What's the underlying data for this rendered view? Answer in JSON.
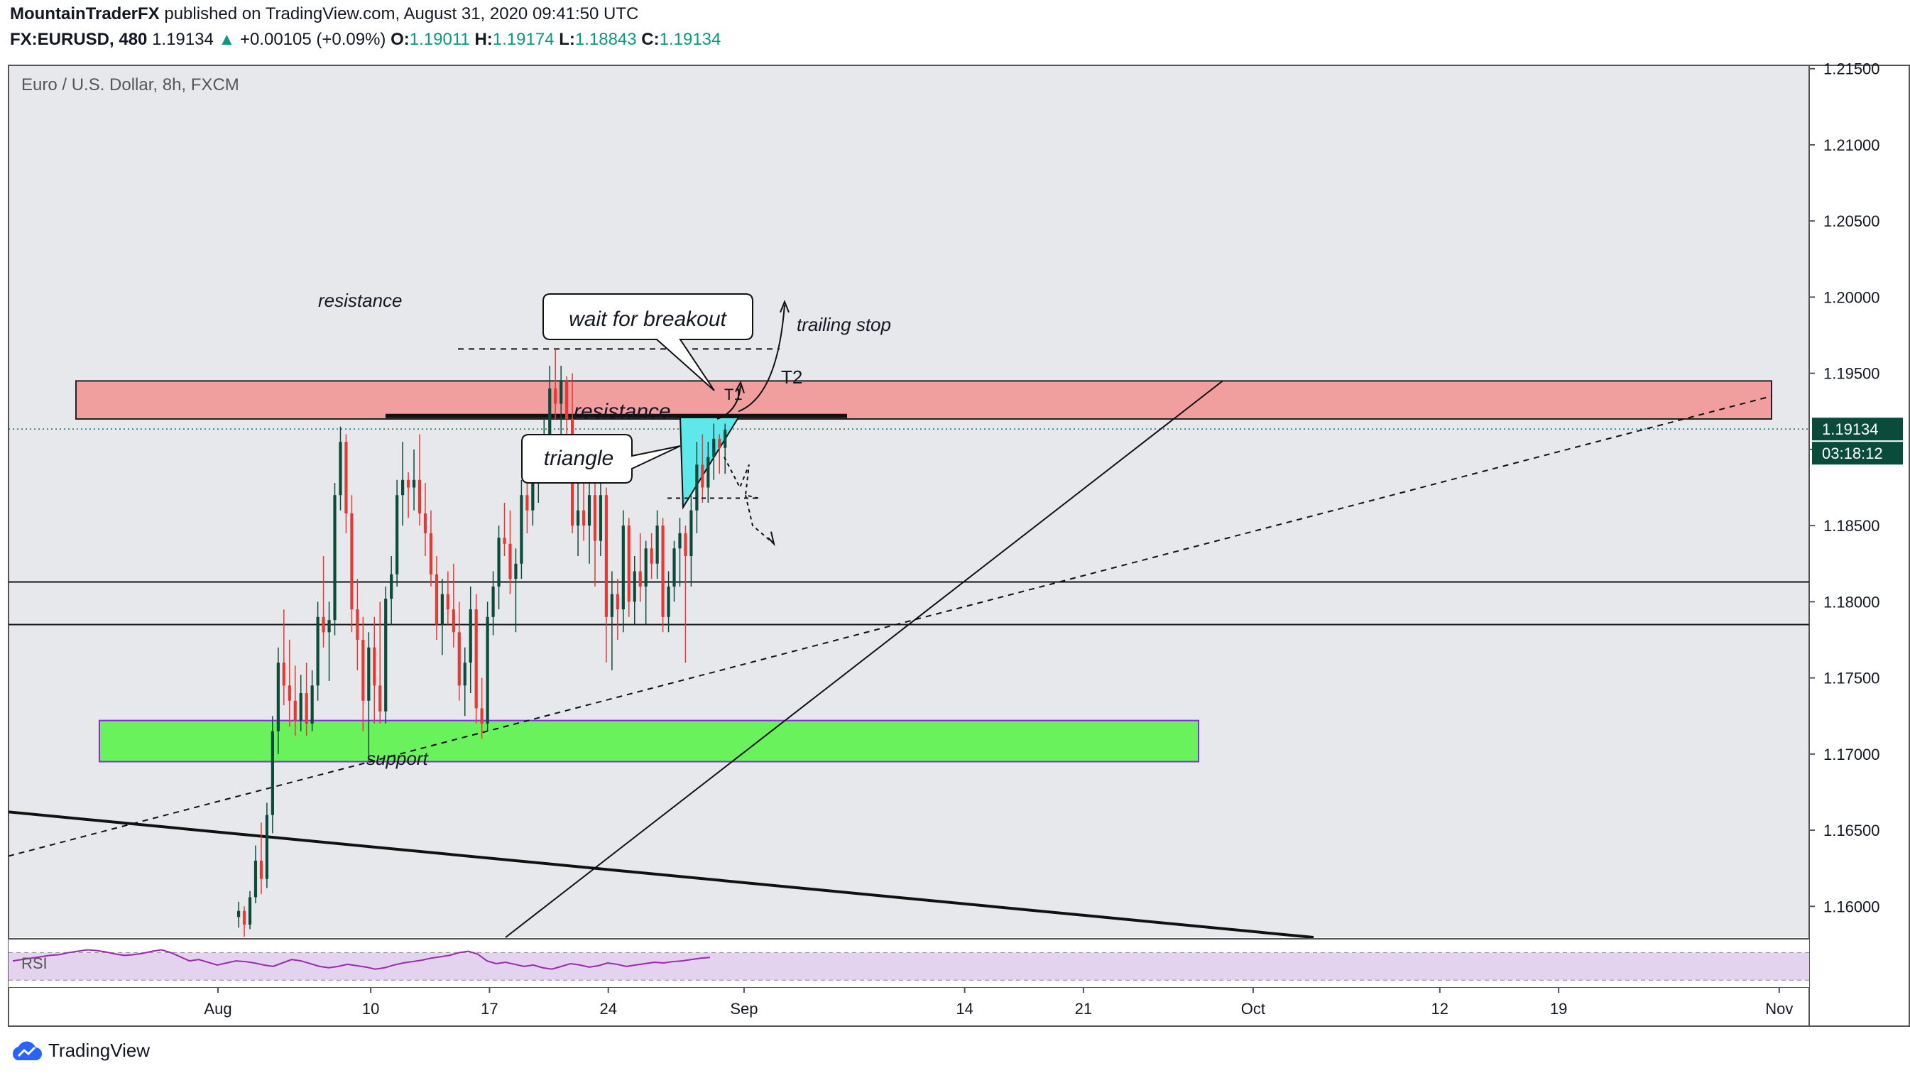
{
  "header": {
    "author": "MountainTraderFX",
    "published_text": "published on TradingView.com, August 31, 2020 09:41:50 UTC",
    "symbol": "FX:EURUSD, 480",
    "last": "1.19134",
    "change_arrow": "▲",
    "change": "+0.00105 (+0.09%)",
    "o_label": "O:",
    "o_val": "1.19011",
    "h_label": "H:",
    "h_val": "1.19174",
    "l_label": "L:",
    "l_val": "1.18843",
    "c_label": "C:",
    "c_val": "1.19134"
  },
  "footer": {
    "brand": "TradingView"
  },
  "chart_data": {
    "type": "candlestick",
    "title": "Euro / U.S. Dollar, 8h, FXCM",
    "ylim": [
      1.157,
      1.2165
    ],
    "y_ticks": [
      "1.21500",
      "1.21000",
      "1.20500",
      "1.20000",
      "1.19500",
      "1.19000",
      "1.18500",
      "1.18000",
      "1.17500",
      "1.17000",
      "1.16500",
      "1.16000"
    ],
    "x_ticks": [
      {
        "label": "Aug",
        "day": 0
      },
      {
        "label": "10",
        "day": 9
      },
      {
        "label": "17",
        "day": 16
      },
      {
        "label": "24",
        "day": 23
      },
      {
        "label": "Sep",
        "day": 31
      },
      {
        "label": "14",
        "day": 44
      },
      {
        "label": "21",
        "day": 51
      },
      {
        "label": "Oct",
        "day": 61
      },
      {
        "label": "12",
        "day": 72
      },
      {
        "label": "19",
        "day": 79
      },
      {
        "label": "Nov",
        "day": 92
      }
    ],
    "price_label": "1.19134",
    "countdown_label": "03:18:12",
    "current_price": 1.19134,
    "colors": {
      "up": "#0b4b3c",
      "down": "#e53935",
      "resistance_zone": "#f19e9e",
      "support_zone": "#6af25c",
      "triangle": "#5ee8ec",
      "rsi_band": "#e3d3ef",
      "rsi_line": "#9c27b0"
    },
    "candles": [
      [
        1.1593,
        1.1603,
        1.1586,
        1.1597
      ],
      [
        1.1597,
        1.16,
        1.158,
        1.1588
      ],
      [
        1.1588,
        1.161,
        1.1585,
        1.1606
      ],
      [
        1.1606,
        1.164,
        1.1602,
        1.163
      ],
      [
        1.163,
        1.1655,
        1.1608,
        1.1618
      ],
      [
        1.1618,
        1.1668,
        1.1612,
        1.166
      ],
      [
        1.166,
        1.1725,
        1.1648,
        1.1715
      ],
      [
        1.1715,
        1.177,
        1.17,
        1.176
      ],
      [
        1.176,
        1.1795,
        1.1732,
        1.1745
      ],
      [
        1.1745,
        1.1775,
        1.1718,
        1.1735
      ],
      [
        1.1735,
        1.1758,
        1.1712,
        1.1722
      ],
      [
        1.1722,
        1.1752,
        1.1715,
        1.174
      ],
      [
        1.174,
        1.176,
        1.1712,
        1.172
      ],
      [
        1.172,
        1.1755,
        1.1715,
        1.1745
      ],
      [
        1.1745,
        1.18,
        1.1735,
        1.179
      ],
      [
        1.179,
        1.183,
        1.177,
        1.178
      ],
      [
        1.178,
        1.18,
        1.1748,
        1.1788
      ],
      [
        1.1788,
        1.1878,
        1.1778,
        1.187
      ],
      [
        1.187,
        1.1915,
        1.186,
        1.1905
      ],
      [
        1.1905,
        1.191,
        1.1845,
        1.1858
      ],
      [
        1.1858,
        1.187,
        1.178,
        1.1795
      ],
      [
        1.1795,
        1.1815,
        1.1755,
        1.1775
      ],
      [
        1.1775,
        1.179,
        1.1715,
        1.1735
      ],
      [
        1.1735,
        1.178,
        1.1695,
        1.177
      ],
      [
        1.177,
        1.179,
        1.172,
        1.1745
      ],
      [
        1.1745,
        1.18,
        1.172,
        1.1728
      ],
      [
        1.1728,
        1.181,
        1.172,
        1.1802
      ],
      [
        1.1802,
        1.183,
        1.1785,
        1.1818
      ],
      [
        1.1818,
        1.188,
        1.181,
        1.187
      ],
      [
        1.187,
        1.1905,
        1.185,
        1.188
      ],
      [
        1.188,
        1.1885,
        1.1855,
        1.1875
      ],
      [
        1.1875,
        1.19,
        1.186,
        1.188
      ],
      [
        1.188,
        1.191,
        1.185,
        1.1858
      ],
      [
        1.1858,
        1.1878,
        1.183,
        1.1845
      ],
      [
        1.1845,
        1.186,
        1.181,
        1.1818
      ],
      [
        1.1818,
        1.183,
        1.1775,
        1.1785
      ],
      [
        1.1785,
        1.1815,
        1.1765,
        1.1805
      ],
      [
        1.1805,
        1.182,
        1.1785,
        1.1795
      ],
      [
        1.1795,
        1.1825,
        1.177,
        1.178
      ],
      [
        1.178,
        1.18,
        1.1735,
        1.1745
      ],
      [
        1.1745,
        1.177,
        1.1725,
        1.176
      ],
      [
        1.176,
        1.181,
        1.174,
        1.1795
      ],
      [
        1.1795,
        1.1805,
        1.172,
        1.173
      ],
      [
        1.173,
        1.175,
        1.171,
        1.172
      ],
      [
        1.172,
        1.18,
        1.1715,
        1.179
      ],
      [
        1.179,
        1.182,
        1.1778,
        1.181
      ],
      [
        1.181,
        1.185,
        1.1795,
        1.1842
      ],
      [
        1.1842,
        1.1865,
        1.183,
        1.1838
      ],
      [
        1.1838,
        1.186,
        1.1805,
        1.1815
      ],
      [
        1.1815,
        1.1835,
        1.178,
        1.1825
      ],
      [
        1.1825,
        1.188,
        1.1815,
        1.187
      ],
      [
        1.187,
        1.1885,
        1.1845,
        1.186
      ],
      [
        1.186,
        1.1895,
        1.185,
        1.188
      ],
      [
        1.188,
        1.19,
        1.1865,
        1.1895
      ],
      [
        1.1895,
        1.192,
        1.1885,
        1.191
      ],
      [
        1.191,
        1.1955,
        1.19,
        1.194
      ],
      [
        1.194,
        1.1966,
        1.192,
        1.193
      ],
      [
        1.193,
        1.1955,
        1.1905,
        1.1945
      ],
      [
        1.1945,
        1.1948,
        1.1895,
        1.192
      ],
      [
        1.192,
        1.195,
        1.1845,
        1.185
      ],
      [
        1.185,
        1.188,
        1.183,
        1.186
      ],
      [
        1.186,
        1.1885,
        1.184,
        1.185
      ],
      [
        1.185,
        1.1885,
        1.1825,
        1.187
      ],
      [
        1.187,
        1.188,
        1.181,
        1.184
      ],
      [
        1.184,
        1.188,
        1.183,
        1.187
      ],
      [
        1.187,
        1.1875,
        1.176,
        1.179
      ],
      [
        1.179,
        1.182,
        1.1755,
        1.1805
      ],
      [
        1.1805,
        1.1815,
        1.1775,
        1.1795
      ],
      [
        1.1795,
        1.186,
        1.178,
        1.185
      ],
      [
        1.185,
        1.1855,
        1.179,
        1.18
      ],
      [
        1.18,
        1.183,
        1.1785,
        1.182
      ],
      [
        1.182,
        1.1845,
        1.18,
        1.181
      ],
      [
        1.181,
        1.184,
        1.1785,
        1.1835
      ],
      [
        1.1835,
        1.1845,
        1.1815,
        1.1825
      ],
      [
        1.1825,
        1.186,
        1.1815,
        1.185
      ],
      [
        1.185,
        1.1855,
        1.178,
        1.179
      ],
      [
        1.179,
        1.182,
        1.178,
        1.181
      ],
      [
        1.181,
        1.184,
        1.18,
        1.1835
      ],
      [
        1.1835,
        1.1855,
        1.181,
        1.1845
      ],
      [
        1.1845,
        1.185,
        1.176,
        1.183
      ],
      [
        1.183,
        1.187,
        1.181,
        1.186
      ],
      [
        1.186,
        1.1905,
        1.1845,
        1.189
      ],
      [
        1.189,
        1.191,
        1.1865,
        1.1875
      ],
      [
        1.1875,
        1.1905,
        1.1865,
        1.1895
      ],
      [
        1.1895,
        1.1917,
        1.188,
        1.1907
      ],
      [
        1.1907,
        1.191,
        1.1884,
        1.1901
      ],
      [
        1.1901,
        1.1917,
        1.1884,
        1.1913
      ]
    ],
    "rsi": {
      "label": "RSI",
      "values": [
        58,
        60,
        62,
        64,
        66,
        67,
        70,
        72,
        74,
        73,
        71,
        68,
        66,
        67,
        69,
        72,
        74,
        70,
        64,
        58,
        60,
        56,
        52,
        55,
        58,
        57,
        55,
        52,
        50,
        55,
        60,
        58,
        54,
        50,
        48,
        50,
        53,
        51,
        49,
        46,
        48,
        52,
        55,
        57,
        59,
        62,
        64,
        66,
        70,
        72,
        68,
        58,
        54,
        56,
        53,
        50,
        52,
        48,
        46,
        50,
        54,
        52,
        49,
        51,
        55,
        53,
        50,
        52,
        54,
        56,
        55,
        57,
        58,
        60,
        62,
        63
      ]
    },
    "annotations": [
      {
        "text": "resistance",
        "kind": "label"
      },
      {
        "text": "wait for breakout",
        "kind": "callout"
      },
      {
        "text": "trailing stop",
        "kind": "label"
      },
      {
        "text": "T2",
        "kind": "label"
      },
      {
        "text": "T1",
        "kind": "label"
      },
      {
        "text": "resistance",
        "kind": "label"
      },
      {
        "text": "triangle",
        "kind": "callout"
      },
      {
        "text": "support",
        "kind": "label"
      }
    ]
  }
}
